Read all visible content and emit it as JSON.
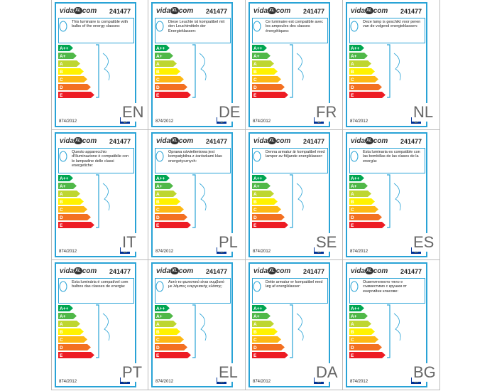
{
  "logo": {
    "left": "vida",
    "mark": "XL",
    "right": "com"
  },
  "product_code": "241477",
  "regulation": "874/2012",
  "classes": [
    "A++",
    "A+",
    "A",
    "B",
    "C",
    "D",
    "E"
  ],
  "labels": [
    {
      "lang": "EN",
      "text": "This luminaire is compatible with bulbs of the energy classes:"
    },
    {
      "lang": "DE",
      "text": "Diese Leuchte ist kompatibel mit den Leuchtmitteln der Energieklassen:"
    },
    {
      "lang": "FR",
      "text": "Ce luminaire est compatible avec les ampoules des classes énergétiques:"
    },
    {
      "lang": "NL",
      "text": "Deze lamp is geschikt voor peren van de volgend energieklassen:"
    },
    {
      "lang": "IT",
      "text": "Questo apparecchio d'illuminazione è compatibile con le lampadine delle classi energetiche:"
    },
    {
      "lang": "PL",
      "text": "Oprawa oświetleniowa jest kompatybilna z żarówkami klas energetycznych:"
    },
    {
      "lang": "SE",
      "text": "Denna armatur är kompatibel med lampor av följande energiklasser:"
    },
    {
      "lang": "ES",
      "text": "Esta luminaria es compatible con las bombillas de las clases de la energía:"
    },
    {
      "lang": "PT",
      "text": "Esta luminária é compatível com bulbos das classes de energia:"
    },
    {
      "lang": "EL",
      "text": "Αυτό το φωτιστικό είναι συμβατό με λάμπες ενεργειακής κλάσης:"
    },
    {
      "lang": "DA",
      "text": "Dette armatur er kompatibel med løg af energiklasser:"
    },
    {
      "lang": "BG",
      "text": "Осветителното тяло е съвместимо с крушки от енергийни класове:"
    }
  ]
}
